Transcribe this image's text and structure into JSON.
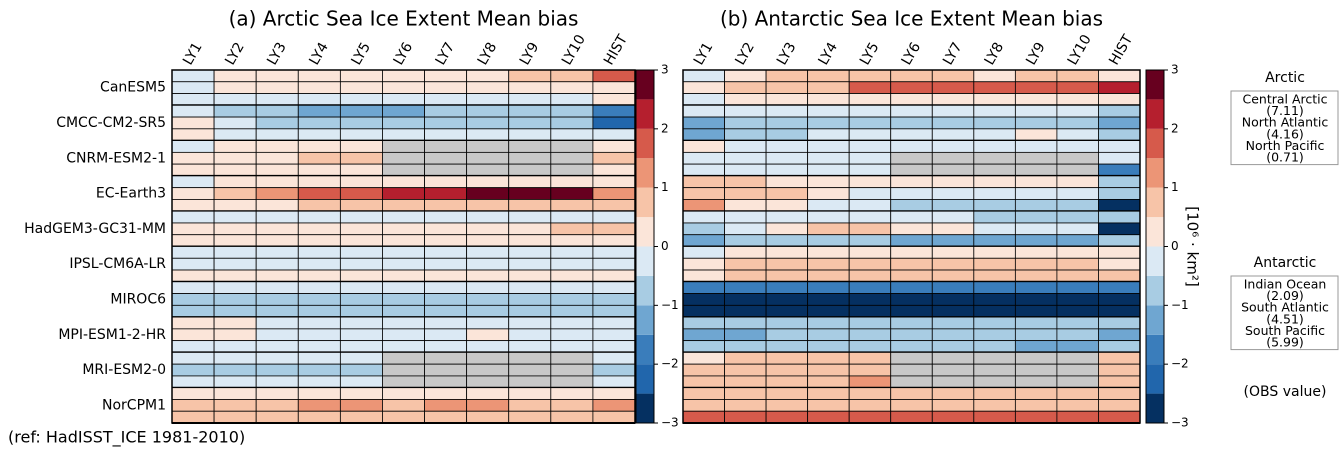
{
  "chart_data": [
    {
      "type": "heatmap",
      "title": "(a) Arctic Sea Ice Extent Mean bias",
      "columns": [
        "LY1",
        "LY2",
        "LY3",
        "LY4",
        "LY5",
        "LY6",
        "LY7",
        "LY8",
        "LY9",
        "LY10",
        "HIST"
      ],
      "groups": [
        "CanESM5",
        "CMCC-CM2-SR5",
        "CNRM-ESM2-1",
        "EC-Earth3",
        "HadGEM3-GC31-MM",
        "IPSL-CM6A-LR",
        "MIROC6",
        "MPI-ESM1-2-HR",
        "MRI-ESM2-0",
        "NorCPM1"
      ],
      "missing_color": "#c8c8c8",
      "values": [
        [
          [
            -0.25,
            0.25,
            0.25,
            0.25,
            0.25,
            0.25,
            0.25,
            0.25,
            0.75,
            0.75,
            1.75
          ],
          [
            -0.25,
            0.25,
            0.25,
            0.25,
            0.25,
            0.25,
            0.25,
            0.25,
            0.25,
            0.25,
            0.25
          ],
          [
            -0.25,
            -0.25,
            -0.25,
            -0.25,
            -0.25,
            -0.25,
            -0.25,
            -0.25,
            -0.25,
            -0.25,
            0.25
          ]
        ],
        [
          [
            -0.25,
            -0.75,
            -0.75,
            -1.25,
            -1.25,
            -1.25,
            -0.75,
            -0.75,
            -0.75,
            -0.75,
            -1.75
          ],
          [
            0.25,
            -0.25,
            -0.75,
            -0.75,
            -0.75,
            -0.75,
            -0.75,
            -0.75,
            -0.75,
            -0.75,
            -2.25
          ],
          [
            0.25,
            -0.25,
            -0.25,
            -0.25,
            -0.25,
            -0.25,
            -0.25,
            -0.25,
            -0.25,
            -0.25,
            -0.25
          ]
        ],
        [
          [
            -0.25,
            0.25,
            0.25,
            0.25,
            0.25,
            null,
            null,
            null,
            null,
            null,
            0.25
          ],
          [
            0.25,
            0.25,
            0.25,
            0.75,
            0.75,
            null,
            null,
            null,
            null,
            null,
            0.75
          ],
          [
            0.25,
            0.25,
            0.25,
            0.25,
            0.25,
            null,
            null,
            null,
            null,
            null,
            0.25
          ]
        ],
        [
          [
            -0.25,
            0.25,
            0.25,
            0.25,
            0.25,
            0.25,
            0.25,
            0.25,
            0.25,
            0.25,
            0.25
          ],
          [
            0.25,
            0.75,
            1.25,
            1.75,
            1.75,
            2.25,
            2.25,
            2.75,
            2.75,
            2.75,
            1.25
          ],
          [
            0.25,
            0.25,
            0.25,
            0.75,
            0.75,
            0.75,
            0.75,
            0.75,
            0.75,
            0.75,
            0.75
          ]
        ],
        [
          [
            -0.25,
            -0.25,
            -0.25,
            -0.25,
            -0.25,
            -0.25,
            -0.25,
            -0.25,
            -0.25,
            -0.25,
            -0.25
          ],
          [
            0.25,
            0.25,
            0.25,
            0.25,
            0.25,
            0.25,
            0.25,
            0.25,
            0.25,
            0.75,
            0.75
          ],
          [
            0.25,
            0.25,
            0.25,
            0.25,
            0.25,
            0.25,
            0.25,
            0.25,
            0.25,
            0.25,
            0.25
          ]
        ],
        [
          [
            -0.25,
            -0.25,
            -0.25,
            -0.25,
            -0.25,
            -0.25,
            -0.25,
            -0.25,
            -0.25,
            -0.25,
            -0.25
          ],
          [
            -0.25,
            -0.25,
            -0.25,
            -0.25,
            -0.25,
            -0.25,
            -0.25,
            -0.25,
            -0.25,
            -0.25,
            -0.25
          ],
          [
            0.25,
            0.25,
            0.25,
            0.25,
            0.25,
            0.25,
            0.25,
            0.25,
            0.25,
            0.25,
            0.25
          ]
        ],
        [
          [
            -0.25,
            -0.25,
            -0.25,
            -0.25,
            -0.25,
            -0.25,
            -0.25,
            -0.25,
            -0.25,
            -0.25,
            -0.25
          ],
          [
            -0.75,
            -0.75,
            -0.75,
            -0.75,
            -0.75,
            -0.75,
            -0.75,
            -0.75,
            -0.75,
            -0.75,
            -0.75
          ],
          [
            -0.75,
            -0.75,
            -0.75,
            -0.75,
            -0.75,
            -0.75,
            -0.75,
            -0.75,
            -0.75,
            -0.75,
            -0.75
          ]
        ],
        [
          [
            0.25,
            0.25,
            -0.25,
            -0.25,
            -0.25,
            -0.25,
            -0.25,
            -0.25,
            -0.25,
            -0.25,
            -0.25
          ],
          [
            0.25,
            0.25,
            -0.25,
            -0.25,
            -0.25,
            -0.25,
            -0.25,
            0.25,
            -0.25,
            -0.25,
            -0.25
          ],
          [
            -0.25,
            -0.25,
            -0.25,
            -0.25,
            -0.25,
            -0.25,
            -0.25,
            -0.25,
            -0.25,
            -0.25,
            -0.25
          ]
        ],
        [
          [
            -0.25,
            -0.25,
            -0.25,
            -0.25,
            -0.25,
            null,
            null,
            null,
            null,
            null,
            -0.25
          ],
          [
            -0.75,
            -0.75,
            -0.75,
            -0.75,
            -0.75,
            null,
            null,
            null,
            null,
            null,
            -0.75
          ],
          [
            -0.25,
            -0.25,
            -0.25,
            -0.25,
            -0.25,
            null,
            null,
            null,
            null,
            null,
            -0.25
          ]
        ],
        [
          [
            0.25,
            0.25,
            0.25,
            0.25,
            0.25,
            0.25,
            0.25,
            0.25,
            0.25,
            0.25,
            0.25
          ],
          [
            0.75,
            0.75,
            0.75,
            1.25,
            1.25,
            0.75,
            1.25,
            1.25,
            0.75,
            0.75,
            1.25
          ],
          [
            0.75,
            0.75,
            0.75,
            0.75,
            0.75,
            0.75,
            0.75,
            0.75,
            0.75,
            0.75,
            0.75
          ]
        ]
      ],
      "colorbar": {
        "levels": [
          -3,
          -2.5,
          -2,
          -1.5,
          -1,
          -0.5,
          0,
          0.5,
          1,
          1.5,
          2,
          2.5,
          3
        ],
        "colors": [
          "#053061",
          "#2166ac",
          "#3a7dbb",
          "#6fa6d1",
          "#a8cce3",
          "#dbe9f4",
          "#fbe5d9",
          "#f7c4a8",
          "#ec9576",
          "#d65a4b",
          "#b51f2e",
          "#67001f"
        ],
        "ylim": [
          -3,
          3
        ],
        "yticks": [
          {
            "value": -3,
            "label": "−3"
          },
          {
            "value": -2,
            "label": "−2"
          },
          {
            "value": -1,
            "label": "−1"
          },
          0,
          1,
          2,
          3
        ]
      }
    },
    {
      "type": "heatmap",
      "title": "(b) Antarctic Sea Ice Extent Mean bias",
      "columns": [
        "LY1",
        "LY2",
        "LY3",
        "LY4",
        "LY5",
        "LY6",
        "LY7",
        "LY8",
        "LY9",
        "LY10",
        "HIST"
      ],
      "missing_color": "#c8c8c8",
      "values": [
        [
          [
            -0.25,
            0.25,
            0.75,
            0.75,
            0.75,
            0.75,
            0.75,
            0.25,
            0.75,
            0.75,
            0.25
          ],
          [
            0.25,
            0.75,
            0.75,
            0.75,
            1.75,
            1.75,
            1.75,
            1.75,
            1.75,
            1.75,
            2.25
          ],
          [
            -0.25,
            0.25,
            0.25,
            0.25,
            0.25,
            0.25,
            0.25,
            0.25,
            0.25,
            0.25,
            0.25
          ]
        ],
        [
          [
            -0.25,
            -0.25,
            -0.25,
            -0.25,
            -0.25,
            -0.25,
            -0.25,
            -0.25,
            -0.25,
            -0.25,
            -0.75
          ],
          [
            -1.25,
            -0.75,
            -0.75,
            -0.75,
            -0.75,
            -0.75,
            -0.75,
            -0.75,
            -0.75,
            -0.75,
            -1.25
          ],
          [
            -1.25,
            -0.75,
            -0.75,
            -0.25,
            -0.25,
            -0.25,
            -0.25,
            -0.25,
            0.25,
            -0.25,
            -0.75
          ]
        ],
        [
          [
            0.25,
            -0.25,
            -0.25,
            -0.25,
            -0.25,
            -0.25,
            -0.25,
            -0.25,
            -0.25,
            -0.25,
            -0.25
          ],
          [
            -0.25,
            -0.25,
            -0.25,
            -0.25,
            -0.25,
            null,
            null,
            null,
            null,
            null,
            -0.25
          ],
          [
            -0.25,
            -0.25,
            -0.25,
            -0.25,
            -0.25,
            null,
            null,
            null,
            null,
            null,
            -1.75
          ]
        ],
        [
          [
            0.75,
            0.75,
            0.25,
            0.25,
            0.25,
            0.25,
            0.25,
            0.25,
            0.25,
            0.25,
            -0.75
          ],
          [
            0.75,
            0.75,
            0.75,
            0.25,
            -0.25,
            -0.25,
            -0.25,
            -0.25,
            -0.25,
            -0.25,
            -0.75
          ],
          [
            1.25,
            0.25,
            0.25,
            -0.25,
            -0.25,
            -0.75,
            -0.75,
            -0.75,
            -0.75,
            -0.75,
            -2.75
          ]
        ],
        [
          [
            -0.25,
            -0.25,
            -0.25,
            -0.25,
            -0.25,
            -0.25,
            -0.25,
            -0.75,
            -0.75,
            -0.75,
            -0.75
          ],
          [
            -0.75,
            -0.25,
            0.25,
            0.75,
            0.75,
            0.25,
            0.25,
            -0.25,
            -0.25,
            -0.25,
            -2.75
          ],
          [
            -1.25,
            -0.75,
            -0.75,
            -0.75,
            -0.75,
            -1.25,
            -1.25,
            -1.25,
            -1.25,
            -1.25,
            -0.75
          ]
        ],
        [
          [
            -0.25,
            0.25,
            0.25,
            0.25,
            0.25,
            0.25,
            0.25,
            0.25,
            0.25,
            0.25,
            0.25
          ],
          [
            0.25,
            0.75,
            0.75,
            0.75,
            0.75,
            0.75,
            0.75,
            0.75,
            0.75,
            0.75,
            0.25
          ],
          [
            0.25,
            0.75,
            0.75,
            0.75,
            0.75,
            0.75,
            0.75,
            0.75,
            0.75,
            0.75,
            0.75
          ]
        ],
        [
          [
            -1.75,
            -1.75,
            -1.75,
            -1.75,
            -1.75,
            -1.75,
            -1.75,
            -1.75,
            -1.75,
            -1.75,
            -1.75
          ],
          [
            -2.75,
            -2.75,
            -2.75,
            -2.75,
            -2.75,
            -2.75,
            -2.75,
            -2.75,
            -2.75,
            -2.75,
            -2.75
          ],
          [
            -2.75,
            -2.75,
            -2.75,
            -2.75,
            -2.75,
            -2.75,
            -2.75,
            -2.75,
            -2.75,
            -2.75,
            -2.75
          ]
        ],
        [
          [
            -0.75,
            -0.75,
            -0.75,
            -0.75,
            -0.75,
            -0.75,
            -0.75,
            -0.75,
            -0.75,
            -0.75,
            -0.75
          ],
          [
            -1.25,
            -1.25,
            -0.75,
            -0.75,
            -0.75,
            -0.75,
            -0.75,
            -0.75,
            -0.75,
            -0.75,
            -1.25
          ],
          [
            -0.75,
            -0.75,
            -0.75,
            -0.75,
            -0.75,
            -0.75,
            -0.75,
            -0.75,
            -1.25,
            -1.25,
            -0.75
          ]
        ],
        [
          [
            0.25,
            0.75,
            0.75,
            0.75,
            0.75,
            null,
            null,
            null,
            null,
            null,
            0.75
          ],
          [
            0.75,
            0.75,
            0.75,
            0.75,
            0.75,
            null,
            null,
            null,
            null,
            null,
            0.75
          ],
          [
            0.75,
            0.75,
            0.75,
            0.75,
            1.25,
            null,
            null,
            null,
            null,
            null,
            0.75
          ]
        ],
        [
          [
            0.75,
            0.75,
            0.75,
            0.75,
            0.75,
            0.75,
            0.75,
            0.75,
            0.75,
            0.75,
            0.75
          ],
          [
            0.75,
            0.75,
            0.75,
            0.75,
            0.75,
            0.75,
            0.75,
            0.75,
            0.75,
            0.75,
            0.75
          ],
          [
            1.75,
            1.75,
            1.75,
            1.75,
            1.75,
            1.75,
            1.75,
            1.75,
            1.75,
            1.75,
            1.75
          ]
        ]
      ],
      "colorbar": {
        "levels": [
          -3,
          -2.5,
          -2,
          -1.5,
          -1,
          -0.5,
          0,
          0.5,
          1,
          1.5,
          2,
          2.5,
          3
        ],
        "colors": [
          "#053061",
          "#2166ac",
          "#3a7dbb",
          "#6fa6d1",
          "#a8cce3",
          "#dbe9f4",
          "#fbe5d9",
          "#f7c4a8",
          "#ec9576",
          "#d65a4b",
          "#b51f2e",
          "#67001f"
        ],
        "ylim": [
          -3,
          3
        ],
        "yticks": [
          {
            "value": -3,
            "label": "−3"
          },
          {
            "value": -2,
            "label": "−2"
          },
          {
            "value": -1,
            "label": "−1"
          },
          0,
          1,
          2,
          3
        ],
        "label": "[10⁶ · km²]"
      }
    }
  ],
  "note": "(ref: HadISST_ICE 1981-2010)",
  "obs_legend": [
    {
      "title": "Arctic",
      "entries": [
        "Central Arctic",
        "(7.11)",
        "North Atlantic",
        "(4.16)",
        "North Pacific",
        "(0.71)"
      ]
    },
    {
      "title": "Antarctic",
      "entries": [
        "Indian Ocean",
        "(2.09)",
        "South Atlantic",
        "(4.51)",
        "South Pacific",
        "(5.99)"
      ]
    }
  ],
  "obs_caption": "(OBS value)"
}
